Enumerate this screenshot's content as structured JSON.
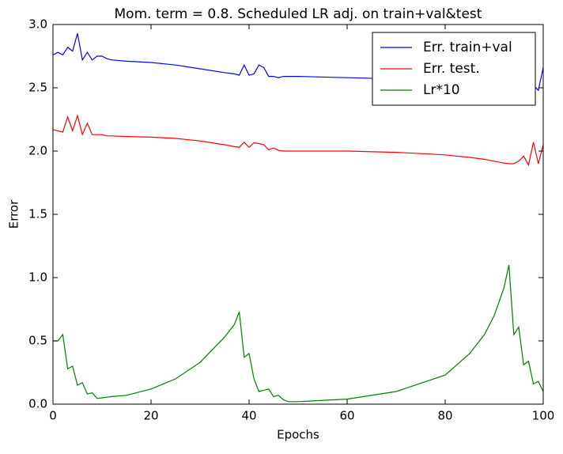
{
  "chart_data": {
    "type": "line",
    "title": "Mom. term = 0.8. Scheduled LR adj. on train+val&test",
    "x_label": "Epochs",
    "y_label": "Error",
    "x": [
      0,
      1,
      2,
      3,
      4,
      5,
      6,
      7,
      8,
      9,
      10,
      11,
      12,
      15,
      20,
      25,
      30,
      35,
      37,
      38,
      39,
      40,
      41,
      42,
      43,
      44,
      45,
      46,
      47,
      48,
      50,
      60,
      70,
      80,
      85,
      88,
      90,
      92,
      93,
      94,
      95,
      96,
      97,
      98,
      99,
      100
    ],
    "series": [
      {
        "name": "Err. train+val",
        "color": "#0000ff",
        "values": [
          2.76,
          2.78,
          2.76,
          2.82,
          2.79,
          2.93,
          2.72,
          2.78,
          2.72,
          2.75,
          2.75,
          2.73,
          2.72,
          2.71,
          2.7,
          2.68,
          2.65,
          2.62,
          2.61,
          2.6,
          2.68,
          2.6,
          2.61,
          2.68,
          2.66,
          2.59,
          2.59,
          2.58,
          2.59,
          2.59,
          2.59,
          2.58,
          2.57,
          2.56,
          2.55,
          2.54,
          2.53,
          2.52,
          2.51,
          2.5,
          2.5,
          2.51,
          2.5,
          2.52,
          2.48,
          2.66
        ]
      },
      {
        "name": "Err. test.",
        "color": "#ff0000",
        "values": [
          2.17,
          2.16,
          2.15,
          2.27,
          2.16,
          2.28,
          2.13,
          2.22,
          2.13,
          2.13,
          2.13,
          2.12,
          2.12,
          2.115,
          2.11,
          2.1,
          2.08,
          2.05,
          2.035,
          2.03,
          2.07,
          2.03,
          2.065,
          2.06,
          2.05,
          2.01,
          2.025,
          2.005,
          2.0,
          2.0,
          2.0,
          2.0,
          1.99,
          1.97,
          1.95,
          1.935,
          1.92,
          1.905,
          1.9,
          1.9,
          1.92,
          1.96,
          1.89,
          2.07,
          1.9,
          2.05
        ]
      },
      {
        "name": "Lr*10",
        "color": "#008000",
        "values": [
          0.5,
          0.5,
          0.55,
          0.28,
          0.3,
          0.15,
          0.17,
          0.08,
          0.09,
          0.045,
          0.05,
          0.055,
          0.06,
          0.07,
          0.12,
          0.2,
          0.33,
          0.53,
          0.63,
          0.73,
          0.37,
          0.4,
          0.2,
          0.1,
          0.11,
          0.12,
          0.06,
          0.07,
          0.035,
          0.02,
          0.02,
          0.04,
          0.1,
          0.23,
          0.4,
          0.55,
          0.7,
          0.92,
          1.1,
          0.55,
          0.61,
          0.31,
          0.34,
          0.16,
          0.18,
          0.1
        ]
      }
    ],
    "xlim": [
      0,
      100
    ],
    "xticks": [
      0,
      20,
      40,
      60,
      80,
      100
    ],
    "ylim": [
      0,
      3
    ],
    "yticks": [
      {
        "value": 0,
        "label": "0.0"
      },
      {
        "value": 0.5,
        "label": "0.5"
      },
      {
        "value": 1,
        "label": "1.0"
      },
      {
        "value": 1.5,
        "label": "1.5"
      },
      {
        "value": 2,
        "label": "2.0"
      },
      {
        "value": 2.5,
        "label": "2.5"
      },
      {
        "value": 3,
        "label": "3.0"
      }
    ],
    "legend": "upper right"
  }
}
